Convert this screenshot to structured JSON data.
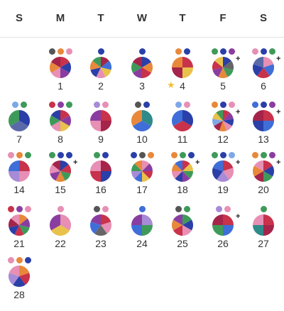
{
  "weekdays": [
    "S",
    "M",
    "T",
    "W",
    "T",
    "F",
    "S"
  ],
  "palette": {
    "red": "#c8324a",
    "blue": "#3f6ed8",
    "orange": "#e8883a",
    "green": "#3f9a5a",
    "pink": "#e78fb4",
    "purple": "#8a3da0",
    "yellow": "#e8c24a",
    "navy": "#2a3fa8",
    "teal": "#2f8a8a",
    "gray": "#666666",
    "lightblue": "#7ea7e6",
    "lavender": "#a78bd6",
    "maroon": "#a4244a",
    "slate": "#5a6aa8"
  },
  "days": [
    {
      "day": "1",
      "col": 1,
      "row": 0,
      "dots": [
        "#555555",
        "#e8883a",
        "#e78fb4"
      ],
      "plus": false,
      "star": false,
      "slices": [
        "#c8324a",
        "#2a3fa8",
        "#8a3da0",
        "#e78fb4",
        "#e8883a",
        "#a4244a"
      ]
    },
    {
      "day": "2",
      "col": 2,
      "row": 0,
      "dots": [
        "#2a3fa8"
      ],
      "plus": false,
      "star": false,
      "slices": [
        "#a4244a",
        "#3f6ed8",
        "#e8c24a",
        "#e78fb4",
        "#2a3fa8",
        "#e8883a",
        "#3f9a5a"
      ]
    },
    {
      "day": "3",
      "col": 3,
      "row": 0,
      "dots": [
        "#2a3fa8"
      ],
      "plus": false,
      "star": false,
      "slices": [
        "#2a3fa8",
        "#e8883a",
        "#c8324a",
        "#8a3da0",
        "#3f9a5a",
        "#a4244a"
      ]
    },
    {
      "day": "4",
      "col": 4,
      "row": 0,
      "dots": [
        "#e8883a",
        "#2a3fa8"
      ],
      "plus": false,
      "star": true,
      "slices": [
        "#c8324a",
        "#e8c24a",
        "#a4244a",
        "#e8883a"
      ]
    },
    {
      "day": "5",
      "col": 5,
      "row": 0,
      "dots": [
        "#3f9a5a",
        "#2a3fa8",
        "#8a3da0"
      ],
      "plus": true,
      "star": false,
      "slices": [
        "#2a3fa8",
        "#666666",
        "#3f9a5a",
        "#e8883a",
        "#8a3da0",
        "#c8324a",
        "#e8c24a"
      ]
    },
    {
      "day": "6",
      "col": 6,
      "row": 0,
      "dots": [
        "#e78fb4",
        "#2a3fa8",
        "#3f9a5a"
      ],
      "plus": true,
      "star": false,
      "slices": [
        "#e78fb4",
        "#3f6ed8",
        "#c8324a",
        "#2a3fa8",
        "#5a6aa8"
      ]
    },
    {
      "day": "7",
      "col": 0,
      "row": 1,
      "dots": [
        "#7ea7e6",
        "#3f9a5a"
      ],
      "plus": false,
      "star": false,
      "slices": [
        "#2a3fa8",
        "#5a6aa8",
        "#3f9a5a"
      ]
    },
    {
      "day": "8",
      "col": 1,
      "row": 1,
      "dots": [
        "#c8324a",
        "#8a3da0",
        "#3f9a5a"
      ],
      "plus": false,
      "star": false,
      "slices": [
        "#c8324a",
        "#8a3da0",
        "#e8c24a",
        "#e78fb4",
        "#3f9a5a",
        "#2a3fa8"
      ]
    },
    {
      "day": "9",
      "col": 2,
      "row": 1,
      "dots": [
        "#a78bd6",
        "#e78fb4"
      ],
      "plus": false,
      "star": false,
      "slices": [
        "#c8324a",
        "#a4244a",
        "#e78fb4",
        "#8a3da0"
      ]
    },
    {
      "day": "10",
      "col": 3,
      "row": 1,
      "dots": [
        "#555555",
        "#2a3fa8"
      ],
      "plus": false,
      "star": false,
      "slices": [
        "#2f8a8a",
        "#3f6ed8",
        "#e8883a"
      ]
    },
    {
      "day": "11",
      "col": 4,
      "row": 1,
      "dots": [
        "#7ea7e6",
        "#e78fb4"
      ],
      "plus": false,
      "star": false,
      "slices": [
        "#2a3fa8",
        "#c8324a",
        "#3f6ed8"
      ]
    },
    {
      "day": "12",
      "col": 5,
      "row": 1,
      "dots": [
        "#e8883a",
        "#2a3fa8",
        "#e78fb4"
      ],
      "plus": true,
      "star": false,
      "slices": [
        "#c8324a",
        "#8a3da0",
        "#2a3fa8",
        "#e78fb4",
        "#e8883a",
        "#a4244a",
        "#7ea7e6",
        "#e8c24a",
        "#3f9a5a"
      ]
    },
    {
      "day": "13",
      "col": 6,
      "row": 1,
      "dots": [
        "#3f6ed8",
        "#2a3fa8",
        "#8a3da0"
      ],
      "plus": true,
      "star": false,
      "slices": [
        "#c8324a",
        "#3f6ed8",
        "#2a3fa8",
        "#a4244a"
      ]
    },
    {
      "day": "14",
      "col": 0,
      "row": 2,
      "dots": [
        "#e78fb4",
        "#e8883a",
        "#3f9a5a"
      ],
      "plus": false,
      "star": false,
      "slices": [
        "#c8324a",
        "#e78fb4",
        "#a78bd6",
        "#3f6ed8"
      ]
    },
    {
      "day": "15",
      "col": 1,
      "row": 2,
      "dots": [
        "#3f9a5a",
        "#2a3fa8",
        "#2a3fa8"
      ],
      "plus": true,
      "star": false,
      "slices": [
        "#2a3fa8",
        "#c8324a",
        "#3f9a5a",
        "#e8883a",
        "#8a3da0",
        "#e78fb4",
        "#a4244a"
      ]
    },
    {
      "day": "16",
      "col": 2,
      "row": 2,
      "dots": [
        "#3f9a5a",
        "#2a3fa8"
      ],
      "plus": false,
      "star": false,
      "slices": [
        "#a4244a",
        "#2a3fa8",
        "#c8324a",
        "#e78fb4"
      ]
    },
    {
      "day": "17",
      "col": 3,
      "row": 2,
      "dots": [
        "#2a3fa8",
        "#555555",
        "#e8883a"
      ],
      "plus": false,
      "star": false,
      "slices": [
        "#e78fb4",
        "#8a3da0",
        "#c8324a",
        "#e8c24a",
        "#3f6ed8",
        "#a78bd6",
        "#3f9a5a",
        "#e8883a"
      ]
    },
    {
      "day": "18",
      "col": 4,
      "row": 2,
      "dots": [
        "#e8883a",
        "#3f9a5a",
        "#2a3fa8"
      ],
      "plus": true,
      "star": false,
      "slices": [
        "#c8324a",
        "#e8c24a",
        "#3f9a5a",
        "#8a3da0",
        "#2a3fa8",
        "#e78fb4",
        "#e8883a",
        "#3f6ed8"
      ]
    },
    {
      "day": "19",
      "col": 5,
      "row": 2,
      "dots": [
        "#3f9a5a",
        "#2a3fa8",
        "#7ea7e6"
      ],
      "plus": true,
      "star": false,
      "slices": [
        "#c8324a",
        "#e78fb4",
        "#a78bd6",
        "#2a3fa8",
        "#3f6ed8"
      ]
    },
    {
      "day": "20",
      "col": 6,
      "row": 2,
      "dots": [
        "#e8883a",
        "#3f9a5a",
        "#8a3da0"
      ],
      "plus": true,
      "star": false,
      "slices": [
        "#c8324a",
        "#2a3fa8",
        "#3f9a5a",
        "#a4244a",
        "#e8883a",
        "#e78fb4"
      ]
    },
    {
      "day": "21",
      "col": 0,
      "row": 3,
      "dots": [
        "#c8324a",
        "#8a3da0",
        "#e78fb4"
      ],
      "plus": false,
      "star": false,
      "slices": [
        "#e8883a",
        "#8a3da0",
        "#3f9a5a",
        "#c8324a",
        "#2a3fa8",
        "#a4244a",
        "#e78fb4"
      ]
    },
    {
      "day": "22",
      "col": 1,
      "row": 3,
      "dots": [
        "#e78fb4"
      ],
      "plus": false,
      "star": false,
      "slices": [
        "#e78fb4",
        "#e8c24a",
        "#8a3da0"
      ]
    },
    {
      "day": "23",
      "col": 2,
      "row": 3,
      "dots": [
        "#555555",
        "#e78fb4"
      ],
      "plus": false,
      "star": false,
      "slices": [
        "#c8324a",
        "#e78fb4",
        "#666666",
        "#3f6ed8",
        "#8a3da0"
      ]
    },
    {
      "day": "24",
      "col": 3,
      "row": 3,
      "dots": [
        "#3f6ed8"
      ],
      "plus": false,
      "star": false,
      "slices": [
        "#a78bd6",
        "#3f9a5a",
        "#3f6ed8",
        "#8a3da0"
      ]
    },
    {
      "day": "25",
      "col": 4,
      "row": 3,
      "dots": [
        "#555555",
        "#3f9a5a"
      ],
      "plus": false,
      "star": false,
      "slices": [
        "#3f9a5a",
        "#2a3fa8",
        "#e78fb4",
        "#c8324a",
        "#e8883a",
        "#8a3da0"
      ]
    },
    {
      "day": "26",
      "col": 5,
      "row": 3,
      "dots": [
        "#a78bd6",
        "#e78fb4"
      ],
      "plus": true,
      "star": false,
      "slices": [
        "#c8324a",
        "#3f6ed8",
        "#3f9a5a",
        "#a4244a"
      ]
    },
    {
      "day": "27",
      "col": 6,
      "row": 3,
      "dots": [
        "#3f9a5a"
      ],
      "plus": false,
      "star": false,
      "slices": [
        "#c8324a",
        "#a4244a",
        "#2f8a8a",
        "#e78fb4"
      ]
    },
    {
      "day": "28",
      "col": 0,
      "row": 4,
      "dots": [
        "#e78fb4",
        "#e8883a",
        "#2a3fa8"
      ],
      "plus": false,
      "star": false,
      "slices": [
        "#e8883a",
        "#c8324a",
        "#2a3fa8",
        "#a78bd6",
        "#e78fb4"
      ]
    }
  ]
}
